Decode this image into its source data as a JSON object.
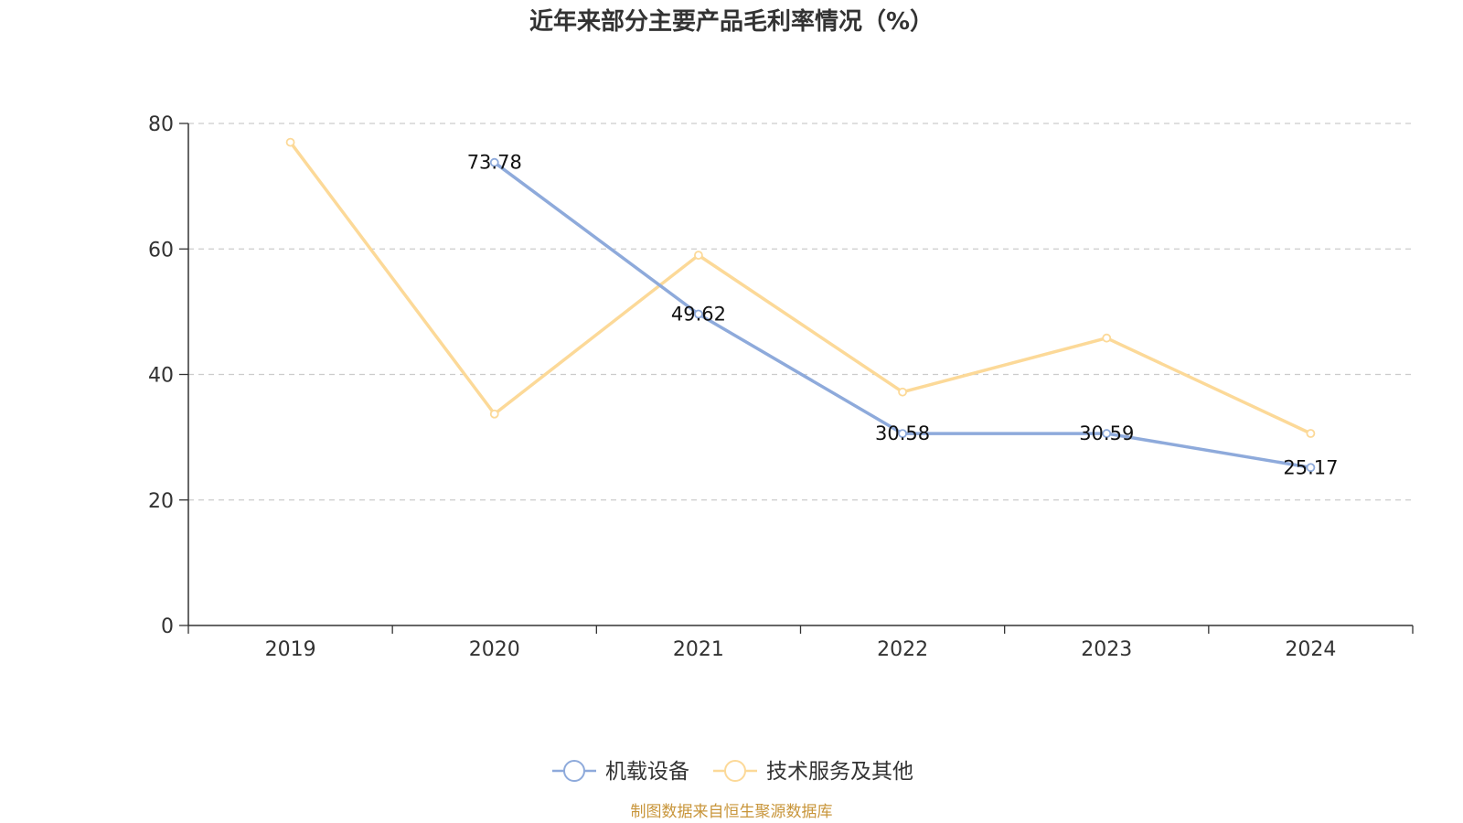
{
  "chart_data": {
    "type": "line",
    "title": "近年来部分主要产品毛利率情况（%）",
    "categories": [
      "2019",
      "2020",
      "2021",
      "2022",
      "2023",
      "2024"
    ],
    "y_ticks": [
      "0",
      "20",
      "40",
      "60",
      "80"
    ],
    "ylim": [
      0,
      80
    ],
    "grid": true,
    "legend_position": "bottom",
    "series": [
      {
        "name": "机载设备",
        "color": "#8eaadb",
        "values": [
          null,
          73.78,
          49.62,
          30.58,
          30.59,
          25.17
        ],
        "labels": [
          null,
          "73.78",
          "49.62",
          "30.58",
          "30.59",
          "25.17"
        ]
      },
      {
        "name": "技术服务及其他",
        "color": "#fcd998",
        "values": [
          77.0,
          33.7,
          59.0,
          37.2,
          45.8,
          30.6
        ],
        "labels": [
          null,
          null,
          null,
          null,
          null,
          null
        ]
      }
    ],
    "source": "制图数据来自恒生聚源数据库",
    "source_color": "#c8953a"
  }
}
